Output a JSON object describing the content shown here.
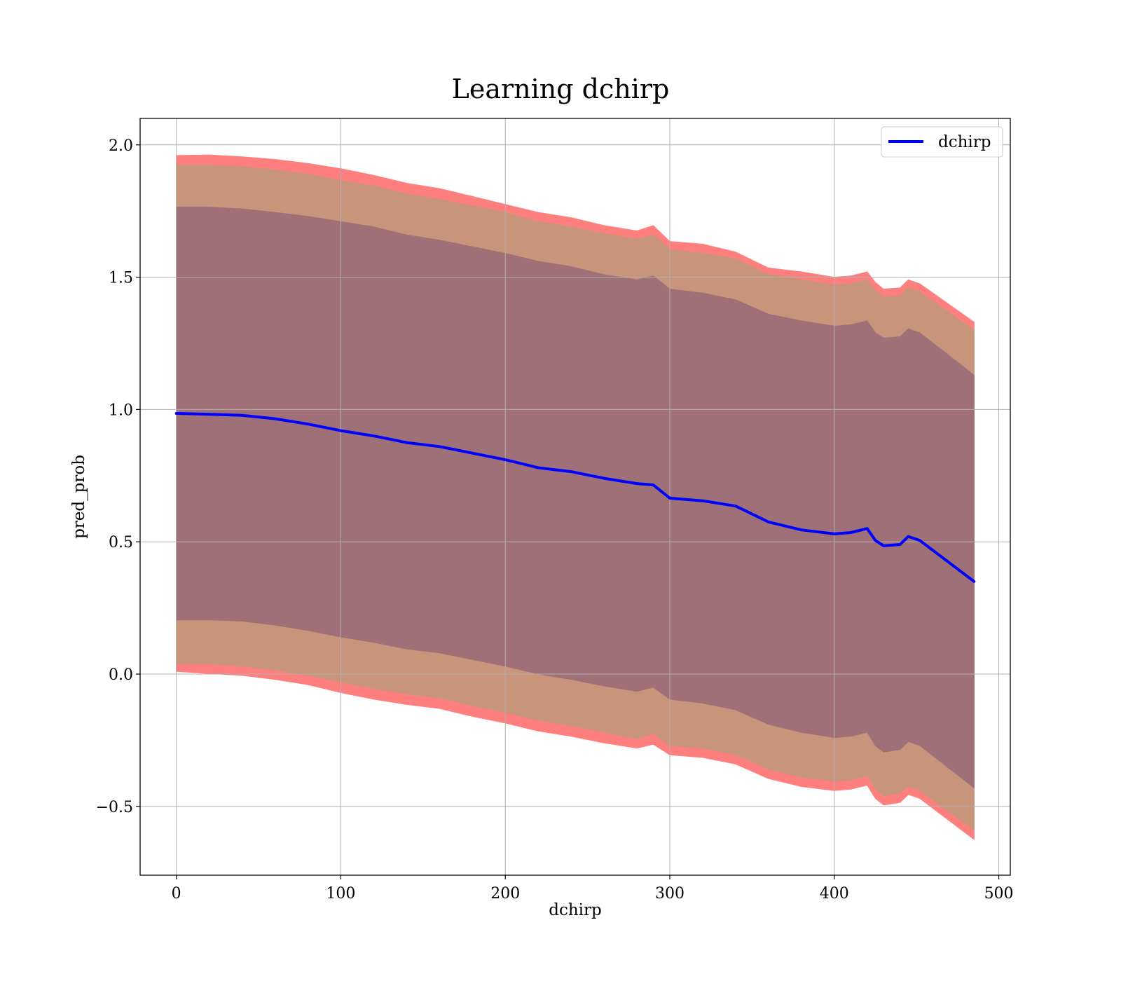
{
  "chart_data": {
    "type": "line",
    "title": "Learning dchirp",
    "xlabel": "dchirp",
    "ylabel": "pred_prob",
    "xlim": [
      -22,
      507
    ],
    "ylim": [
      -0.76,
      2.1
    ],
    "xticks": [
      0,
      100,
      200,
      300,
      400,
      500
    ],
    "yticks": [
      -0.5,
      0.0,
      0.5,
      1.0,
      1.5,
      2.0
    ],
    "xtick_labels": [
      "0",
      "100",
      "200",
      "300",
      "400",
      "500"
    ],
    "ytick_labels": [
      "−0.5",
      "0.0",
      "0.5",
      "1.0",
      "1.5",
      "2.0"
    ],
    "grid": true,
    "legend": {
      "position": "top-right",
      "entries": [
        "dchirp"
      ]
    },
    "series": [
      {
        "name": "dchirp",
        "color": "#0000ff",
        "x": [
          0,
          20,
          40,
          60,
          80,
          100,
          120,
          140,
          160,
          180,
          200,
          220,
          240,
          260,
          280,
          290,
          300,
          320,
          340,
          360,
          380,
          400,
          410,
          420,
          425,
          430,
          440,
          445,
          452,
          485
        ],
        "y": [
          0.985,
          0.982,
          0.978,
          0.965,
          0.945,
          0.92,
          0.9,
          0.875,
          0.86,
          0.835,
          0.81,
          0.78,
          0.765,
          0.74,
          0.72,
          0.715,
          0.665,
          0.655,
          0.635,
          0.575,
          0.545,
          0.53,
          0.535,
          0.55,
          0.505,
          0.485,
          0.49,
          0.52,
          0.505,
          0.35
        ]
      }
    ],
    "bands": [
      {
        "role": "outer",
        "color": "#ff7f7f",
        "x": [
          0,
          20,
          40,
          60,
          80,
          100,
          120,
          140,
          160,
          180,
          200,
          220,
          240,
          260,
          280,
          290,
          300,
          320,
          340,
          360,
          380,
          400,
          410,
          420,
          425,
          430,
          440,
          445,
          452,
          485
        ],
        "upper": [
          1.96,
          1.962,
          1.955,
          1.945,
          1.93,
          1.91,
          1.885,
          1.855,
          1.835,
          1.805,
          1.775,
          1.745,
          1.725,
          1.695,
          1.675,
          1.695,
          1.635,
          1.625,
          1.595,
          1.535,
          1.52,
          1.5,
          1.505,
          1.52,
          1.48,
          1.455,
          1.46,
          1.49,
          1.475,
          1.33
        ],
        "lower": [
          0.01,
          0.002,
          -0.005,
          -0.02,
          -0.04,
          -0.07,
          -0.095,
          -0.115,
          -0.13,
          -0.16,
          -0.185,
          -0.215,
          -0.235,
          -0.26,
          -0.28,
          -0.265,
          -0.305,
          -0.315,
          -0.34,
          -0.395,
          -0.425,
          -0.44,
          -0.435,
          -0.42,
          -0.47,
          -0.495,
          -0.485,
          -0.455,
          -0.47,
          -0.625
        ]
      },
      {
        "role": "middle",
        "color": "#c8957a",
        "x": [
          0,
          20,
          40,
          60,
          80,
          100,
          120,
          140,
          160,
          180,
          200,
          220,
          240,
          260,
          280,
          290,
          300,
          320,
          340,
          360,
          380,
          400,
          410,
          420,
          425,
          430,
          440,
          445,
          452,
          485
        ],
        "upper": [
          1.925,
          1.923,
          1.918,
          1.905,
          1.89,
          1.865,
          1.845,
          1.815,
          1.795,
          1.77,
          1.745,
          1.71,
          1.69,
          1.665,
          1.645,
          1.66,
          1.605,
          1.59,
          1.57,
          1.51,
          1.49,
          1.47,
          1.475,
          1.49,
          1.45,
          1.425,
          1.43,
          1.46,
          1.445,
          1.3
        ],
        "lower": [
          0.04,
          0.038,
          0.03,
          0.015,
          -0.005,
          -0.03,
          -0.055,
          -0.075,
          -0.09,
          -0.12,
          -0.145,
          -0.175,
          -0.195,
          -0.22,
          -0.245,
          -0.225,
          -0.27,
          -0.28,
          -0.305,
          -0.36,
          -0.39,
          -0.405,
          -0.4,
          -0.385,
          -0.435,
          -0.46,
          -0.45,
          -0.425,
          -0.44,
          -0.59
        ]
      },
      {
        "role": "inner",
        "color": "#a07078",
        "x": [
          0,
          20,
          40,
          60,
          80,
          100,
          120,
          140,
          160,
          180,
          200,
          220,
          240,
          260,
          280,
          290,
          300,
          320,
          340,
          360,
          380,
          400,
          410,
          420,
          425,
          430,
          440,
          445,
          452,
          485
        ],
        "upper": [
          1.765,
          1.765,
          1.758,
          1.745,
          1.73,
          1.71,
          1.69,
          1.66,
          1.64,
          1.615,
          1.59,
          1.56,
          1.54,
          1.51,
          1.49,
          1.505,
          1.455,
          1.44,
          1.415,
          1.36,
          1.335,
          1.315,
          1.32,
          1.335,
          1.29,
          1.27,
          1.275,
          1.305,
          1.29,
          1.13
        ],
        "lower": [
          0.205,
          0.205,
          0.2,
          0.185,
          0.165,
          0.14,
          0.12,
          0.095,
          0.08,
          0.055,
          0.03,
          0.0,
          -0.02,
          -0.045,
          -0.065,
          -0.05,
          -0.095,
          -0.11,
          -0.135,
          -0.19,
          -0.22,
          -0.24,
          -0.235,
          -0.22,
          -0.27,
          -0.295,
          -0.285,
          -0.255,
          -0.27,
          -0.43
        ]
      }
    ]
  }
}
